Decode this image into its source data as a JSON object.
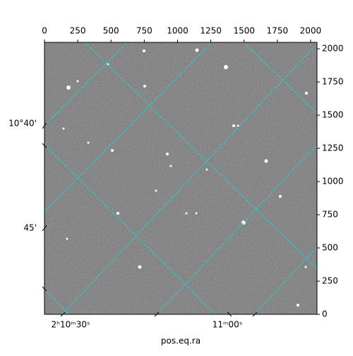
{
  "chart_data": {
    "type": "image",
    "xlabel": "pos.eq.ra",
    "xlim": [
      0,
      2048
    ],
    "ylim": [
      0,
      2048
    ],
    "xticks": [
      0,
      250,
      500,
      750,
      1000,
      1250,
      1500,
      1750,
      2000
    ],
    "yticks": [
      0,
      250,
      500,
      750,
      1000,
      1250,
      1500,
      1750,
      2000
    ],
    "ra_ticks": [
      "2ʰ10ᵐ30ˢ",
      "11ᵐ00ˢ"
    ],
    "dec_ticks": [
      "10°40'",
      "45'"
    ],
    "grid_color": "#00e5e5"
  }
}
